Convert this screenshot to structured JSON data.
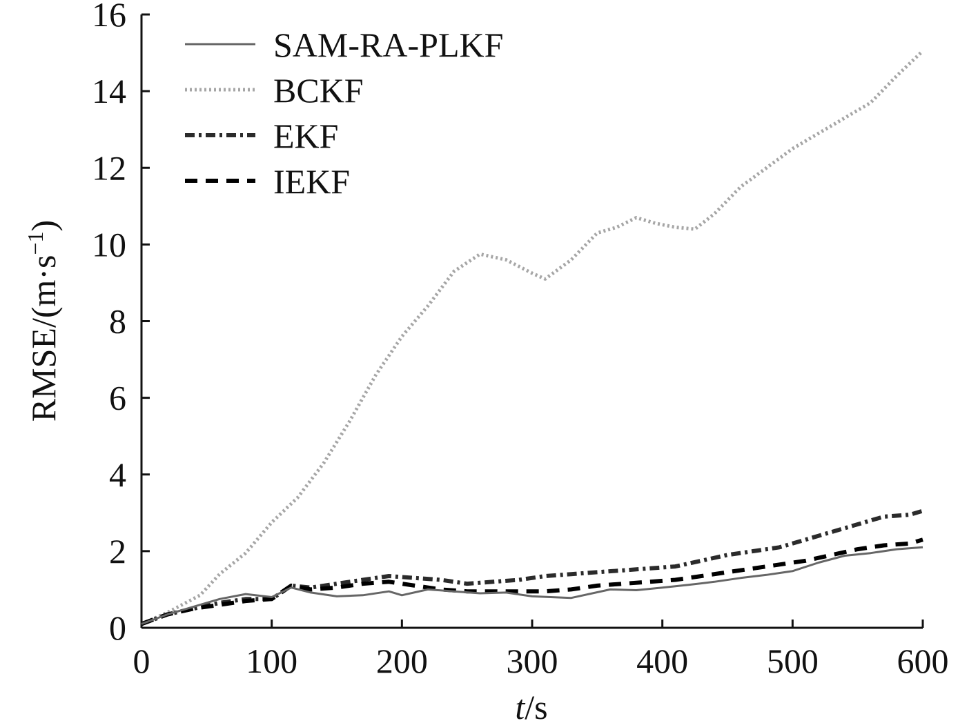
{
  "chart_data": {
    "type": "line",
    "title": "",
    "xlabel_italic": "t",
    "xlabel_rest": "/s",
    "ylabel_main": "RMSE/(m·s",
    "ylabel_sup": "−1",
    "ylabel_close": ")",
    "xlim": [
      0,
      600
    ],
    "ylim": [
      0,
      16
    ],
    "xticks": [
      0,
      100,
      200,
      300,
      400,
      500,
      600
    ],
    "yticks": [
      0,
      2,
      4,
      6,
      8,
      10,
      12,
      14,
      16
    ],
    "grid": false,
    "legend_position": "top-left",
    "series": [
      {
        "name": "SAM-RA-PLKF",
        "color": "#666666",
        "style": "solid",
        "x": [
          0,
          20,
          40,
          60,
          80,
          100,
          115,
          130,
          150,
          170,
          190,
          200,
          220,
          240,
          260,
          280,
          300,
          330,
          360,
          380,
          400,
          420,
          440,
          460,
          480,
          500,
          520,
          540,
          560,
          580,
          600
        ],
        "y": [
          0.1,
          0.35,
          0.55,
          0.75,
          0.88,
          0.8,
          1.05,
          0.92,
          0.82,
          0.85,
          0.95,
          0.85,
          1.0,
          0.95,
          0.9,
          0.92,
          0.82,
          0.78,
          1.0,
          0.98,
          1.05,
          1.12,
          1.2,
          1.3,
          1.38,
          1.48,
          1.7,
          1.88,
          1.95,
          2.05,
          2.1
        ]
      },
      {
        "name": "BCKF",
        "color": "#a6a6a6",
        "style": "dotted",
        "x": [
          0,
          20,
          45,
          60,
          80,
          100,
          120,
          140,
          160,
          180,
          200,
          220,
          240,
          260,
          280,
          300,
          310,
          330,
          350,
          365,
          380,
          395,
          410,
          425,
          440,
          460,
          480,
          500,
          520,
          540,
          560,
          580,
          600
        ],
        "y": [
          0.1,
          0.4,
          0.85,
          1.4,
          1.95,
          2.75,
          3.4,
          4.3,
          5.4,
          6.6,
          7.6,
          8.4,
          9.3,
          9.75,
          9.6,
          9.25,
          9.1,
          9.6,
          10.3,
          10.45,
          10.7,
          10.55,
          10.45,
          10.4,
          10.8,
          11.5,
          12.0,
          12.5,
          12.9,
          13.3,
          13.7,
          14.4,
          15.05
        ]
      },
      {
        "name": "EKF",
        "color": "#2b2b2b",
        "style": "dashdot",
        "x": [
          0,
          20,
          40,
          60,
          80,
          100,
          115,
          130,
          150,
          170,
          190,
          210,
          230,
          250,
          270,
          290,
          310,
          330,
          350,
          370,
          390,
          410,
          430,
          450,
          470,
          490,
          510,
          530,
          550,
          570,
          590,
          600
        ],
        "y": [
          0.1,
          0.35,
          0.5,
          0.65,
          0.75,
          0.75,
          1.1,
          1.05,
          1.15,
          1.25,
          1.35,
          1.3,
          1.25,
          1.15,
          1.2,
          1.25,
          1.35,
          1.4,
          1.45,
          1.5,
          1.55,
          1.6,
          1.75,
          1.9,
          2.0,
          2.1,
          2.3,
          2.5,
          2.7,
          2.9,
          2.95,
          3.05
        ]
      },
      {
        "name": "IEKF",
        "color": "#000000",
        "style": "dashed",
        "x": [
          0,
          20,
          40,
          60,
          80,
          100,
          115,
          130,
          150,
          170,
          190,
          210,
          230,
          250,
          270,
          290,
          310,
          330,
          350,
          370,
          390,
          410,
          430,
          450,
          470,
          490,
          510,
          530,
          550,
          570,
          590,
          600
        ],
        "y": [
          0.1,
          0.35,
          0.5,
          0.6,
          0.7,
          0.75,
          1.1,
          1.0,
          1.05,
          1.15,
          1.2,
          1.1,
          1.0,
          0.95,
          0.95,
          0.95,
          0.95,
          1.0,
          1.1,
          1.15,
          1.2,
          1.25,
          1.35,
          1.45,
          1.55,
          1.65,
          1.75,
          1.9,
          2.05,
          2.15,
          2.2,
          2.3
        ]
      }
    ]
  }
}
